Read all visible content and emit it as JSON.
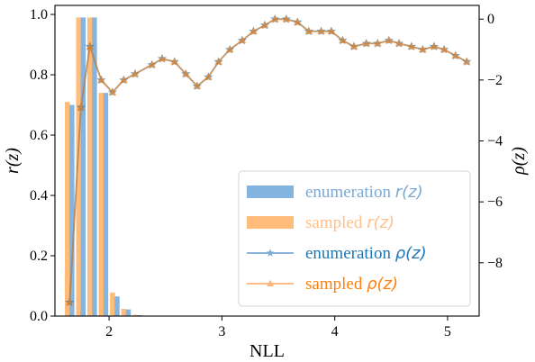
{
  "chart_data": {
    "type": "bar+line",
    "title": "",
    "xlabel": "NLL",
    "ylabel_left": "r(z)",
    "ylabel_right": "ρ(z)",
    "xlim": [
      1.52,
      5.28
    ],
    "ylim_left": [
      0,
      1.03
    ],
    "ylim_right": [
      -9.75,
      0.45
    ],
    "x_ticks": [
      2,
      3,
      4,
      5
    ],
    "y_left_ticks": [
      0.0,
      0.2,
      0.4,
      0.6,
      0.8,
      1.0
    ],
    "y_right_ticks": [
      0,
      -2,
      -4,
      -6,
      -8
    ],
    "bar_width": 0.045,
    "bars": [
      {
        "name": "enumeration r(z)",
        "color": "#5b9bd5",
        "alpha": 0.75,
        "x": [
          1.67,
          1.77,
          1.87,
          1.97,
          2.07,
          2.17,
          2.27
        ],
        "values": [
          0.7,
          0.99,
          0.99,
          0.74,
          0.065,
          0.022,
          0.003
        ]
      },
      {
        "name": "sampled r(z)",
        "color": "#ffa64d",
        "alpha": 0.75,
        "x": [
          1.63,
          1.73,
          1.83,
          1.93,
          2.03,
          2.13,
          2.23
        ],
        "values": [
          0.71,
          0.99,
          0.99,
          0.74,
          0.078,
          0.024,
          0.004
        ]
      }
    ],
    "series": [
      {
        "name": "enumeration ρ(z)",
        "color": "#1f77b4",
        "marker": "star",
        "x": [
          1.65,
          1.75,
          1.83,
          1.93,
          2.03,
          2.13,
          2.23,
          2.38,
          2.47,
          2.58,
          2.68,
          2.78,
          2.88,
          2.97,
          3.07,
          3.18,
          3.28,
          3.38,
          3.47,
          3.57,
          3.67,
          3.77,
          3.88,
          3.97,
          4.07,
          4.17,
          4.28,
          4.38,
          4.48,
          4.57,
          4.68,
          4.78,
          4.88,
          4.97,
          5.07,
          5.17
        ],
        "values": [
          -9.3,
          -2.9,
          -0.9,
          -2.0,
          -2.4,
          -2.0,
          -1.8,
          -1.5,
          -1.3,
          -1.4,
          -1.8,
          -2.2,
          -1.9,
          -1.4,
          -1.0,
          -0.7,
          -0.4,
          -0.2,
          0.0,
          0.0,
          -0.1,
          -0.4,
          -0.4,
          -0.4,
          -0.7,
          -0.9,
          -0.8,
          -0.8,
          -0.7,
          -0.8,
          -0.9,
          -1.0,
          -0.9,
          -1.0,
          -1.2,
          -1.4
        ]
      },
      {
        "name": "sampled ρ(z)",
        "color": "#ff7f0e",
        "marker": "triangle",
        "x": [
          1.65,
          1.75,
          1.83,
          1.93,
          2.03,
          2.13,
          2.23,
          2.38,
          2.47,
          2.58,
          2.68,
          2.78,
          2.88,
          2.97,
          3.07,
          3.18,
          3.28,
          3.38,
          3.47,
          3.57,
          3.67,
          3.77,
          3.88,
          3.97,
          4.07,
          4.17,
          4.28,
          4.38,
          4.48,
          4.57,
          4.68,
          4.78,
          4.88,
          4.97,
          5.07,
          5.17
        ],
        "values": [
          -9.3,
          -2.9,
          -0.9,
          -2.0,
          -2.4,
          -2.0,
          -1.8,
          -1.5,
          -1.3,
          -1.4,
          -1.8,
          -2.2,
          -1.9,
          -1.4,
          -1.0,
          -0.7,
          -0.4,
          -0.2,
          0.0,
          0.0,
          -0.1,
          -0.4,
          -0.4,
          -0.4,
          -0.7,
          -0.9,
          -0.8,
          -0.8,
          -0.7,
          -0.8,
          -0.9,
          -1.0,
          -0.9,
          -1.0,
          -1.2,
          -1.4
        ]
      }
    ],
    "legend": {
      "placement": "lower-right",
      "entries": [
        {
          "prefix": "enumeration ",
          "math": "r(z)",
          "color": "#7aa9d3",
          "kind": "bar",
          "swatch": "#5b9bd5"
        },
        {
          "prefix": "sampled ",
          "math": "r(z)",
          "color": "#ffc08a",
          "kind": "bar",
          "swatch": "#ffa64d"
        },
        {
          "prefix": "enumeration ",
          "math": "ρ(z)",
          "color": "#1f77b4",
          "kind": "star",
          "swatch": "#7aa9d3"
        },
        {
          "prefix": "sampled ",
          "math": "ρ(z)",
          "color": "#ff7f0e",
          "kind": "triangle",
          "swatch": "#ffb37a"
        }
      ]
    },
    "grid": false
  }
}
